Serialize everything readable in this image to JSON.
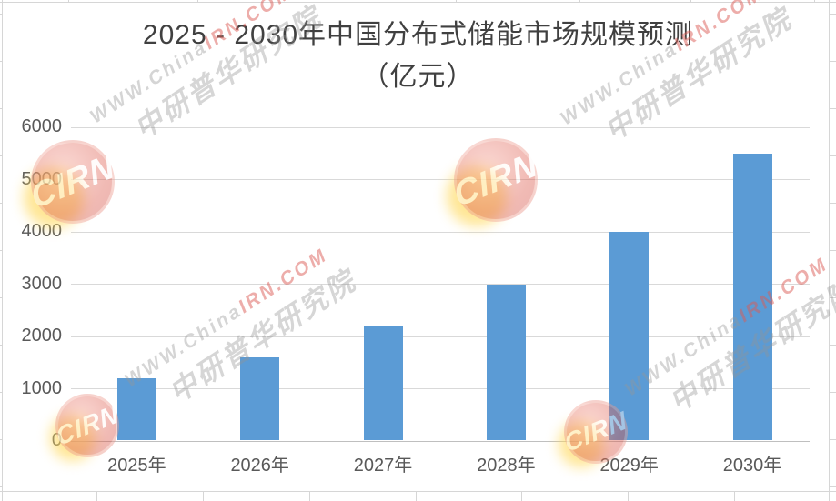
{
  "title": {
    "line1": "2025 - 2030年中国分布式储能市场规模预测",
    "line2": "（亿元）"
  },
  "chart_data": {
    "type": "bar",
    "title": "2025 - 2030年中国分布式储能市场规模预测（亿元）",
    "categories": [
      "2025年",
      "2026年",
      "2027年",
      "2028年",
      "2029年",
      "2030年"
    ],
    "values": [
      1200,
      1600,
      2200,
      3000,
      4000,
      5500
    ],
    "xlabel": "",
    "ylabel": "",
    "ylim": [
      0,
      6000
    ],
    "yticks": [
      0,
      1000,
      2000,
      3000,
      4000,
      5000,
      6000
    ],
    "grid": true,
    "legend": false,
    "bar_color": "#5b9bd5"
  },
  "watermark": {
    "line1_gray": "WWW.China",
    "line1_red": "IRN.COM",
    "line2": "中研普华研究院",
    "logo_text": "CIRN"
  },
  "colors": {
    "bar": "#5b9bd5",
    "title_text": "#404040",
    "axis_text": "#595959",
    "gridline": "#d9d9d9",
    "watermark_red": "#db5c55",
    "logo_red": "#db5648",
    "logo_glow": "#ffd95e"
  }
}
